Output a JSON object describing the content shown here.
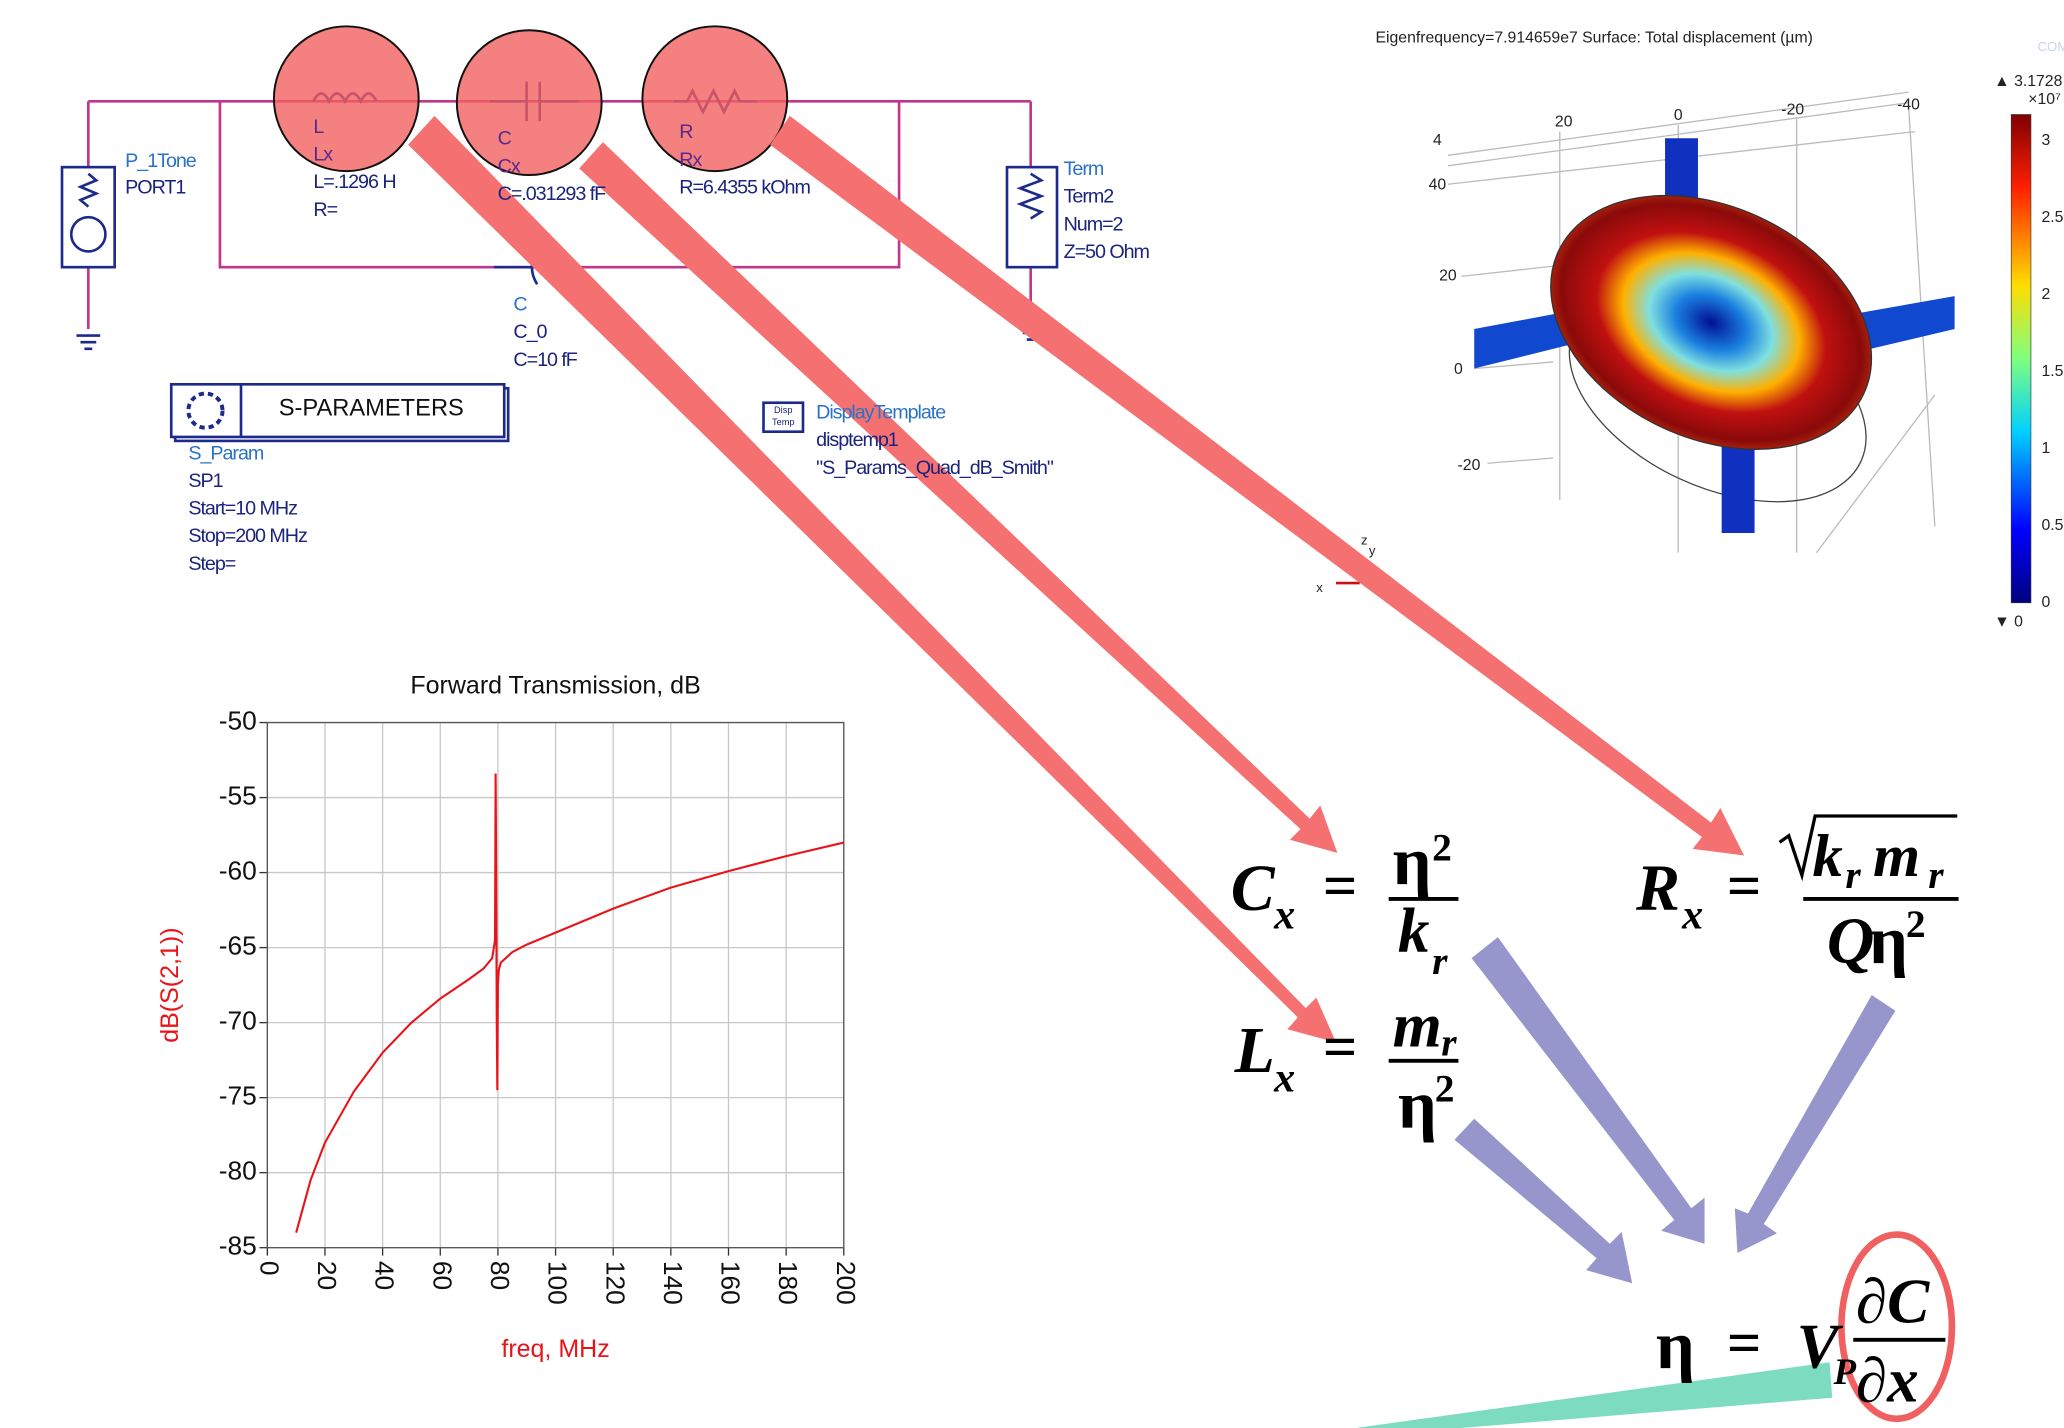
{
  "circuit": {
    "port": [
      "P_1Tone",
      "PORT1"
    ],
    "inductor": [
      "L",
      "Lx",
      "L=.1296 H",
      "R="
    ],
    "capacitor_x": [
      "C",
      "Cx",
      "C=.031293 fF"
    ],
    "resistor": [
      "R",
      "Rx",
      "R=6.4355 kOhm"
    ],
    "capacitor_0": [
      "C",
      "C_0",
      "C=10 fF"
    ],
    "term": [
      "Term",
      "Term2",
      "Num=2",
      "Z=50 Ohm"
    ],
    "sparam": {
      "title": "S-PARAMETERS",
      "lines": [
        "S_Param",
        "SP1",
        "Start=10 MHz",
        "Stop=200 MHz",
        "Step="
      ]
    },
    "display_template": {
      "icon": [
        "Disp",
        "Temp"
      ],
      "lines": [
        "DisplayTemplate",
        "disptemp1",
        "\"S_Params_Quad_dB_Smith\""
      ]
    }
  },
  "simulation": {
    "header": "Eigenfrequency=7.914659e7   Surface: Total displacement (µm)",
    "logo": "COMSOL",
    "max_label": "▲ 3.1728",
    "exponent": "×10⁷",
    "min_label": "▼ 0",
    "colorbar_ticks": [
      "3",
      "2.5",
      "2",
      "1.5",
      "1",
      "0.5",
      "0"
    ],
    "top_axis": [
      "20",
      "0",
      "-20",
      "-40"
    ],
    "left_axis": [
      "4",
      "40",
      "20",
      "0",
      "-20"
    ],
    "triad": [
      "x",
      "y",
      "z"
    ]
  },
  "chart_data": {
    "type": "line",
    "title": "Forward Transmission, dB",
    "x_label": "freq, MHz",
    "y_label": "dB(S(2,1))",
    "x": [
      10,
      15,
      20,
      30,
      40,
      50,
      60,
      70,
      75,
      78,
      79,
      79.2,
      79.4,
      79.6,
      79.8,
      80,
      80.3,
      81,
      85,
      90,
      100,
      120,
      140,
      160,
      180,
      200
    ],
    "series": [
      {
        "name": "dB(S(2,1))",
        "color": "#e8141a",
        "values": [
          -84,
          -80.5,
          -78,
          -74.6,
          -72,
          -70,
          -68.4,
          -67.1,
          -66.4,
          -65.7,
          -64.5,
          -53.4,
          -60,
          -70,
          -74.5,
          -67.5,
          -66.5,
          -66,
          -65.3,
          -64.8,
          -64,
          -62.4,
          -61,
          -59.9,
          -58.9,
          -58
        ]
      }
    ],
    "xlim": [
      0,
      200
    ],
    "xticks": [
      0,
      20,
      40,
      60,
      80,
      100,
      120,
      140,
      160,
      180,
      200
    ],
    "ylim": [
      -85,
      -50
    ],
    "yticks": [
      -85,
      -80,
      -75,
      -70,
      -65,
      -60,
      -55,
      -50
    ],
    "grid": true
  },
  "equations": {
    "cx": [
      "C",
      "x",
      "=",
      "η",
      "2",
      "k",
      "r"
    ],
    "lx": [
      "L",
      "x",
      "=",
      "m",
      "r",
      "η",
      "2"
    ],
    "rx": [
      "R",
      "x",
      "=",
      "k",
      "r",
      "m",
      "r",
      "Q",
      "η",
      "2"
    ],
    "eta": [
      "η",
      "=",
      "V",
      "P",
      "∂C",
      "∂x"
    ]
  }
}
